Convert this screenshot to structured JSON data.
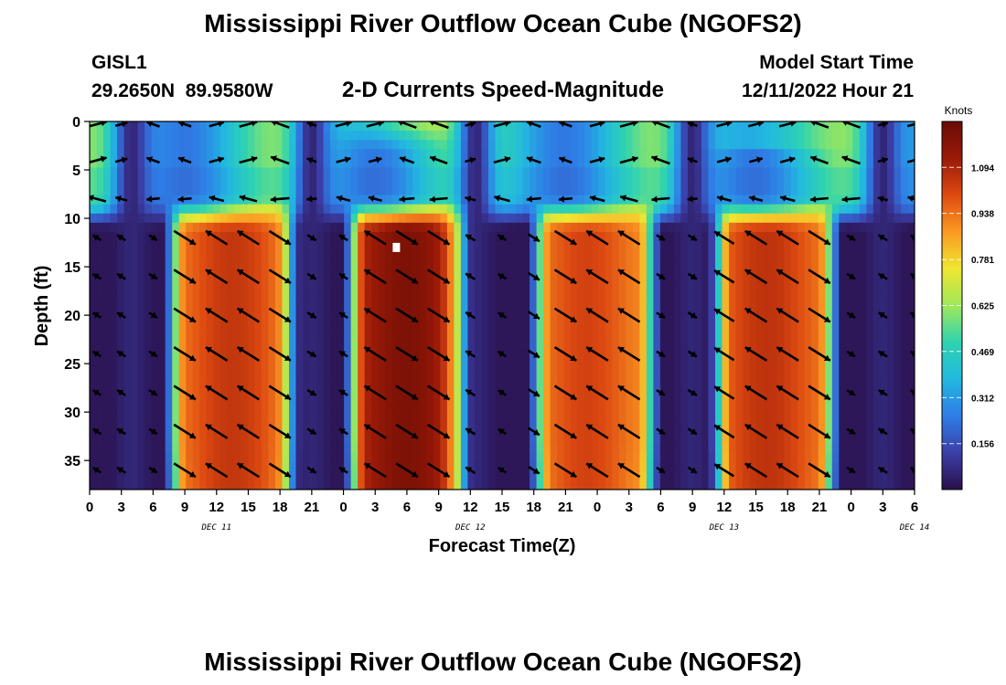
{
  "title": "Mississippi River Outflow Ocean Cube (NGOFS2)",
  "title_repeat": "Mississippi River Outflow Ocean Cube (NGOFS2)",
  "station": {
    "name": "GISL1",
    "coords": "29.2650N  89.9580W"
  },
  "subtitle": "2-D Currents Speed-Magnitude",
  "model_start": {
    "label": "Model Start Time",
    "value": "12/11/2022 Hour 21"
  },
  "colors": {
    "scale": [
      "#2a0f4a",
      "#3b3fa8",
      "#2f7de6",
      "#22b8e0",
      "#2fd3b0",
      "#9fe85a",
      "#f0e531",
      "#fb9a23",
      "#dd4a12",
      "#9a1a08",
      "#6a0c05"
    ]
  },
  "chart_data": {
    "type": "heatmap",
    "title": "2-D Currents Speed-Magnitude",
    "xlabel": "Forecast Time(Z)",
    "ylabel": "Depth (ft)",
    "x_range_hours": [
      0,
      78
    ],
    "y_range_ft": [
      0,
      38
    ],
    "y_ticks": [
      0,
      5,
      10,
      15,
      20,
      25,
      30,
      35
    ],
    "x_ticks": [
      {
        "hour": 0,
        "label": "0"
      },
      {
        "hour": 3,
        "label": "3"
      },
      {
        "hour": 6,
        "label": "6"
      },
      {
        "hour": 9,
        "label": "9"
      },
      {
        "hour": 12,
        "label": "12"
      },
      {
        "hour": 15,
        "label": "15"
      },
      {
        "hour": 18,
        "label": "18"
      },
      {
        "hour": 21,
        "label": "21"
      },
      {
        "hour": 24,
        "label": "0"
      },
      {
        "hour": 27,
        "label": "3"
      },
      {
        "hour": 30,
        "label": "6"
      },
      {
        "hour": 33,
        "label": "9"
      },
      {
        "hour": 36,
        "label": "12"
      },
      {
        "hour": 39,
        "label": "15"
      },
      {
        "hour": 42,
        "label": "18"
      },
      {
        "hour": 45,
        "label": "21"
      },
      {
        "hour": 48,
        "label": "0"
      },
      {
        "hour": 51,
        "label": "3"
      },
      {
        "hour": 54,
        "label": "6"
      },
      {
        "hour": 57,
        "label": "9"
      },
      {
        "hour": 60,
        "label": "12"
      },
      {
        "hour": 63,
        "label": "15"
      },
      {
        "hour": 66,
        "label": "18"
      },
      {
        "hour": 69,
        "label": "21"
      },
      {
        "hour": 72,
        "label": "0"
      },
      {
        "hour": 75,
        "label": "3"
      },
      {
        "hour": 78,
        "label": "6"
      }
    ],
    "date_labels": [
      {
        "hour": 12,
        "label": "DEC 11"
      },
      {
        "hour": 36,
        "label": "DEC 12"
      },
      {
        "hour": 60,
        "label": "DEC 13"
      },
      {
        "hour": 78,
        "label": "DEC 14"
      }
    ],
    "colorbar": {
      "label": "Knots",
      "min": 0.0,
      "max": 1.25,
      "ticks": [
        0.156,
        0.312,
        0.469,
        0.625,
        0.781,
        0.938,
        1.094
      ]
    },
    "max_speed_knots": 1.2,
    "high_speed_cores": [
      {
        "start_hour": 8,
        "end_hour": 19,
        "peak_hour": 13.5,
        "peak_knots": 1.05
      },
      {
        "start_hour": 25,
        "end_hour": 36,
        "peak_hour": 30,
        "peak_knots": 1.2
      },
      {
        "start_hour": 42.5,
        "end_hour": 53,
        "peak_hour": 47,
        "peak_knots": 1.02
      },
      {
        "start_hour": 59.5,
        "end_hour": 70,
        "peak_hour": 64,
        "peak_knots": 1.06
      }
    ],
    "slack_minima_hours": [
      4,
      21,
      36.5,
      57,
      75
    ],
    "marker": {
      "hour": 29,
      "depth_ft": 13
    }
  }
}
